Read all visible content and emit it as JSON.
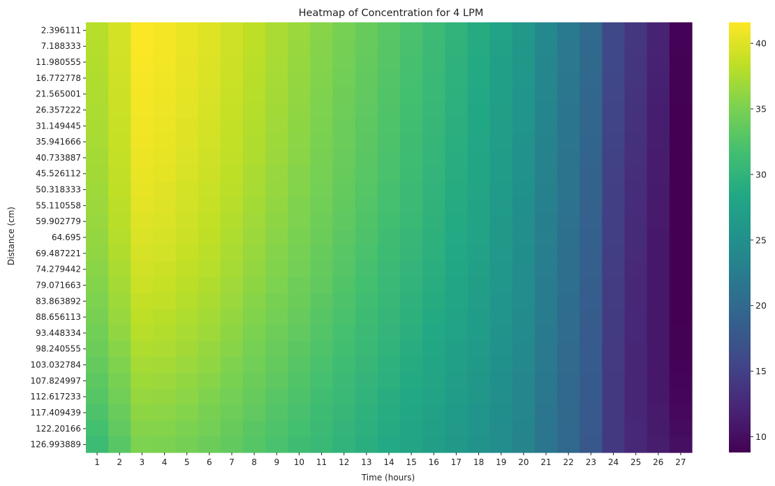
{
  "chart_data": {
    "type": "heatmap",
    "title": "Heatmap of Concentration for 4 LPM",
    "xlabel": "Time (hours)",
    "ylabel": "Distance (cm)",
    "x": [
      "1",
      "2",
      "3",
      "4",
      "5",
      "6",
      "7",
      "8",
      "9",
      "10",
      "11",
      "12",
      "13",
      "14",
      "15",
      "16",
      "17",
      "18",
      "19",
      "20",
      "21",
      "22",
      "23",
      "24",
      "25",
      "26",
      "27"
    ],
    "y": [
      "2.396111",
      "7.188333",
      "11.980555",
      "16.772778",
      "21.565001",
      "26.357222",
      "31.149445",
      "35.941666",
      "40.733887",
      "45.526112",
      "50.318333",
      "55.110558",
      "59.902779",
      "64.695",
      "69.487221",
      "74.279442",
      "79.071663",
      "83.863892",
      "88.656113",
      "93.448334",
      "98.240555",
      "103.032784",
      "107.824997",
      "112.617233",
      "117.409439",
      "122.20166",
      "126.993889"
    ],
    "colorscale": "viridis",
    "vmin": 8.8,
    "vmax": 41.6,
    "colorbar_ticks": [
      10,
      15,
      20,
      25,
      30,
      35,
      40
    ],
    "values": [
      [
        38.0,
        39.5,
        41.5,
        41.2,
        40.6,
        40.0,
        39.2,
        38.3,
        37.4,
        36.6,
        35.7,
        34.8,
        33.9,
        33.0,
        32.1,
        31.1,
        30.0,
        28.9,
        27.6,
        26.2,
        24.1,
        22.2,
        20.1,
        16.0,
        14.0,
        12.0,
        9.0
      ],
      [
        37.9,
        39.4,
        41.5,
        41.2,
        40.6,
        40.0,
        39.2,
        38.3,
        37.4,
        36.5,
        35.6,
        34.7,
        33.8,
        32.9,
        32.0,
        31.0,
        29.9,
        28.8,
        27.5,
        26.1,
        24.0,
        22.1,
        20.0,
        15.9,
        13.9,
        11.9,
        9.0
      ],
      [
        37.8,
        39.3,
        41.4,
        41.1,
        40.5,
        39.9,
        39.1,
        38.2,
        37.3,
        36.4,
        35.5,
        34.6,
        33.7,
        32.8,
        31.9,
        30.9,
        29.8,
        28.7,
        27.4,
        26.0,
        23.9,
        22.0,
        19.9,
        15.8,
        13.8,
        11.8,
        8.9
      ],
      [
        37.7,
        39.2,
        41.3,
        41.0,
        40.4,
        39.8,
        39.0,
        38.1,
        37.2,
        36.3,
        35.4,
        34.5,
        33.6,
        32.7,
        31.8,
        30.8,
        29.7,
        28.6,
        27.3,
        25.9,
        23.8,
        21.9,
        19.8,
        15.7,
        13.7,
        11.7,
        8.9
      ],
      [
        37.6,
        39.1,
        41.2,
        40.9,
        40.3,
        39.7,
        38.9,
        38.0,
        37.1,
        36.2,
        35.3,
        34.4,
        33.5,
        32.6,
        31.7,
        30.7,
        29.6,
        28.5,
        27.2,
        25.8,
        23.7,
        21.8,
        19.7,
        15.6,
        13.6,
        11.6,
        8.9
      ],
      [
        37.5,
        39.0,
        41.1,
        40.8,
        40.2,
        39.6,
        38.8,
        37.9,
        37.0,
        36.1,
        35.2,
        34.3,
        33.4,
        32.5,
        31.6,
        30.6,
        29.5,
        28.4,
        27.1,
        25.7,
        23.6,
        21.7,
        19.6,
        15.5,
        13.5,
        11.5,
        8.8
      ],
      [
        37.4,
        38.9,
        41.0,
        40.7,
        40.1,
        39.5,
        38.7,
        37.8,
        36.9,
        36.0,
        35.1,
        34.2,
        33.3,
        32.4,
        31.5,
        30.5,
        29.4,
        28.3,
        27.0,
        25.6,
        23.5,
        21.6,
        19.5,
        15.4,
        13.4,
        11.5,
        8.8
      ],
      [
        37.3,
        38.8,
        40.9,
        40.6,
        40.0,
        39.4,
        38.6,
        37.7,
        36.8,
        35.9,
        35.0,
        34.1,
        33.2,
        32.3,
        31.4,
        30.4,
        29.3,
        28.2,
        26.9,
        25.5,
        23.4,
        21.5,
        19.4,
        15.3,
        13.3,
        11.4,
        8.8
      ],
      [
        37.1,
        38.7,
        40.7,
        40.4,
        39.8,
        39.2,
        38.5,
        37.6,
        36.7,
        35.8,
        34.9,
        34.0,
        33.1,
        32.2,
        31.3,
        30.3,
        29.2,
        28.1,
        26.8,
        25.4,
        23.3,
        21.4,
        19.3,
        15.2,
        13.2,
        11.3,
        8.8
      ],
      [
        37.0,
        38.5,
        40.6,
        40.3,
        39.7,
        39.1,
        38.3,
        37.4,
        36.5,
        35.6,
        34.8,
        33.9,
        33.0,
        32.1,
        31.2,
        30.2,
        29.1,
        28.0,
        26.7,
        25.3,
        23.2,
        21.3,
        19.2,
        15.1,
        13.1,
        11.3,
        8.8
      ],
      [
        36.8,
        38.4,
        40.4,
        40.1,
        39.5,
        38.9,
        38.2,
        37.3,
        36.4,
        35.5,
        34.6,
        33.7,
        32.8,
        31.9,
        31.0,
        30.0,
        28.9,
        27.9,
        26.6,
        25.2,
        23.1,
        21.2,
        19.1,
        15.0,
        13.0,
        11.2,
        8.8
      ],
      [
        36.7,
        38.2,
        40.2,
        40.0,
        39.4,
        38.8,
        38.0,
        37.1,
        36.2,
        35.3,
        34.5,
        33.6,
        32.7,
        31.8,
        30.9,
        29.9,
        28.8,
        27.8,
        26.5,
        25.1,
        23.0,
        21.1,
        19.0,
        14.9,
        12.9,
        11.1,
        8.8
      ],
      [
        36.5,
        38.1,
        40.0,
        39.8,
        39.2,
        38.6,
        37.8,
        36.9,
        36.0,
        35.2,
        34.3,
        33.4,
        32.5,
        31.6,
        30.7,
        29.8,
        28.7,
        27.7,
        26.4,
        25.0,
        22.9,
        21.0,
        18.9,
        14.8,
        12.8,
        11.1,
        8.8
      ],
      [
        36.3,
        37.9,
        39.8,
        39.6,
        39.0,
        38.4,
        37.6,
        36.7,
        35.8,
        35.0,
        34.1,
        33.2,
        32.3,
        31.4,
        30.5,
        29.6,
        28.6,
        27.6,
        26.3,
        24.9,
        22.8,
        20.9,
        18.8,
        14.8,
        12.8,
        11.0,
        8.8
      ],
      [
        36.1,
        37.7,
        39.6,
        39.4,
        38.8,
        38.2,
        37.4,
        36.5,
        35.6,
        34.8,
        33.9,
        33.0,
        32.1,
        31.2,
        30.4,
        29.5,
        28.5,
        27.5,
        26.2,
        24.8,
        22.7,
        20.8,
        18.7,
        14.7,
        12.7,
        11.0,
        8.8
      ],
      [
        35.8,
        37.4,
        39.3,
        39.1,
        38.5,
        38.0,
        37.2,
        36.3,
        35.4,
        34.6,
        33.7,
        32.8,
        31.9,
        31.0,
        30.2,
        29.3,
        28.3,
        27.3,
        26.0,
        24.7,
        22.6,
        20.7,
        18.6,
        14.6,
        12.6,
        11.0,
        8.8
      ],
      [
        35.5,
        37.1,
        39.0,
        38.8,
        38.2,
        37.7,
        36.9,
        36.0,
        35.2,
        34.3,
        33.5,
        32.6,
        31.7,
        30.8,
        30.0,
        29.1,
        28.1,
        27.1,
        25.9,
        24.6,
        22.5,
        20.6,
        18.5,
        14.5,
        12.5,
        10.9,
        8.8
      ],
      [
        35.2,
        36.8,
        38.7,
        38.5,
        37.9,
        37.4,
        36.6,
        35.7,
        34.9,
        34.1,
        33.2,
        32.3,
        31.5,
        30.6,
        29.8,
        28.9,
        28.0,
        27.0,
        25.8,
        24.5,
        22.4,
        20.5,
        18.4,
        14.5,
        12.5,
        10.9,
        8.8
      ],
      [
        34.9,
        36.5,
        38.3,
        38.1,
        37.6,
        37.1,
        36.3,
        35.4,
        34.6,
        33.8,
        32.9,
        32.1,
        31.2,
        30.4,
        29.6,
        28.7,
        27.8,
        26.8,
        25.6,
        24.4,
        22.3,
        20.4,
        18.3,
        14.4,
        12.4,
        10.9,
        8.8
      ],
      [
        34.5,
        36.1,
        38.0,
        37.8,
        37.3,
        36.8,
        36.0,
        35.1,
        34.3,
        33.5,
        32.7,
        31.8,
        31.0,
        30.2,
        29.4,
        28.5,
        27.6,
        26.7,
        25.5,
        24.3,
        22.2,
        20.3,
        18.2,
        14.4,
        12.4,
        10.9,
        8.9
      ],
      [
        34.1,
        35.7,
        37.6,
        37.5,
        37.0,
        36.4,
        35.7,
        34.8,
        34.0,
        33.2,
        32.4,
        31.6,
        30.8,
        30.0,
        29.2,
        28.3,
        27.4,
        26.5,
        25.4,
        24.2,
        22.1,
        20.2,
        18.2,
        14.3,
        12.3,
        10.9,
        8.9
      ],
      [
        33.7,
        35.3,
        37.2,
        37.1,
        36.6,
        36.1,
        35.3,
        34.5,
        33.7,
        32.9,
        32.1,
        31.3,
        30.5,
        29.7,
        28.9,
        28.1,
        27.2,
        26.3,
        25.2,
        24.0,
        22.0,
        20.1,
        18.1,
        14.3,
        12.3,
        10.9,
        9.0
      ],
      [
        33.3,
        34.9,
        36.8,
        36.7,
        36.2,
        35.7,
        35.0,
        34.2,
        33.4,
        32.6,
        31.8,
        31.0,
        30.2,
        29.5,
        28.7,
        27.9,
        27.0,
        26.1,
        25.1,
        23.9,
        21.9,
        20.0,
        18.0,
        14.2,
        12.3,
        11.0,
        9.1
      ],
      [
        32.8,
        34.5,
        36.4,
        36.3,
        35.9,
        35.3,
        34.6,
        33.8,
        33.0,
        32.3,
        31.5,
        30.7,
        30.0,
        29.2,
        28.5,
        27.7,
        26.8,
        26.0,
        24.9,
        23.8,
        21.8,
        20.0,
        18.0,
        14.2,
        12.3,
        11.0,
        9.3
      ],
      [
        32.3,
        34.0,
        36.0,
        35.9,
        35.5,
        34.9,
        34.3,
        33.5,
        32.7,
        32.0,
        31.2,
        30.5,
        29.7,
        29.0,
        28.3,
        27.5,
        26.6,
        25.8,
        24.8,
        23.7,
        21.7,
        19.9,
        17.9,
        14.2,
        12.3,
        11.1,
        9.5
      ],
      [
        31.7,
        33.5,
        35.6,
        35.5,
        35.1,
        34.6,
        33.9,
        33.1,
        32.4,
        31.7,
        31.0,
        30.2,
        29.5,
        28.8,
        28.1,
        27.3,
        26.5,
        25.7,
        24.7,
        23.6,
        21.7,
        19.8,
        17.9,
        14.2,
        12.4,
        11.2,
        9.8
      ],
      [
        31.1,
        33.0,
        35.2,
        35.1,
        34.7,
        34.2,
        33.6,
        32.8,
        32.1,
        31.4,
        30.7,
        30.0,
        29.3,
        28.6,
        27.9,
        27.1,
        26.3,
        25.5,
        24.5,
        23.5,
        21.6,
        19.8,
        17.8,
        14.2,
        12.5,
        11.4,
        10.1
      ]
    ]
  }
}
